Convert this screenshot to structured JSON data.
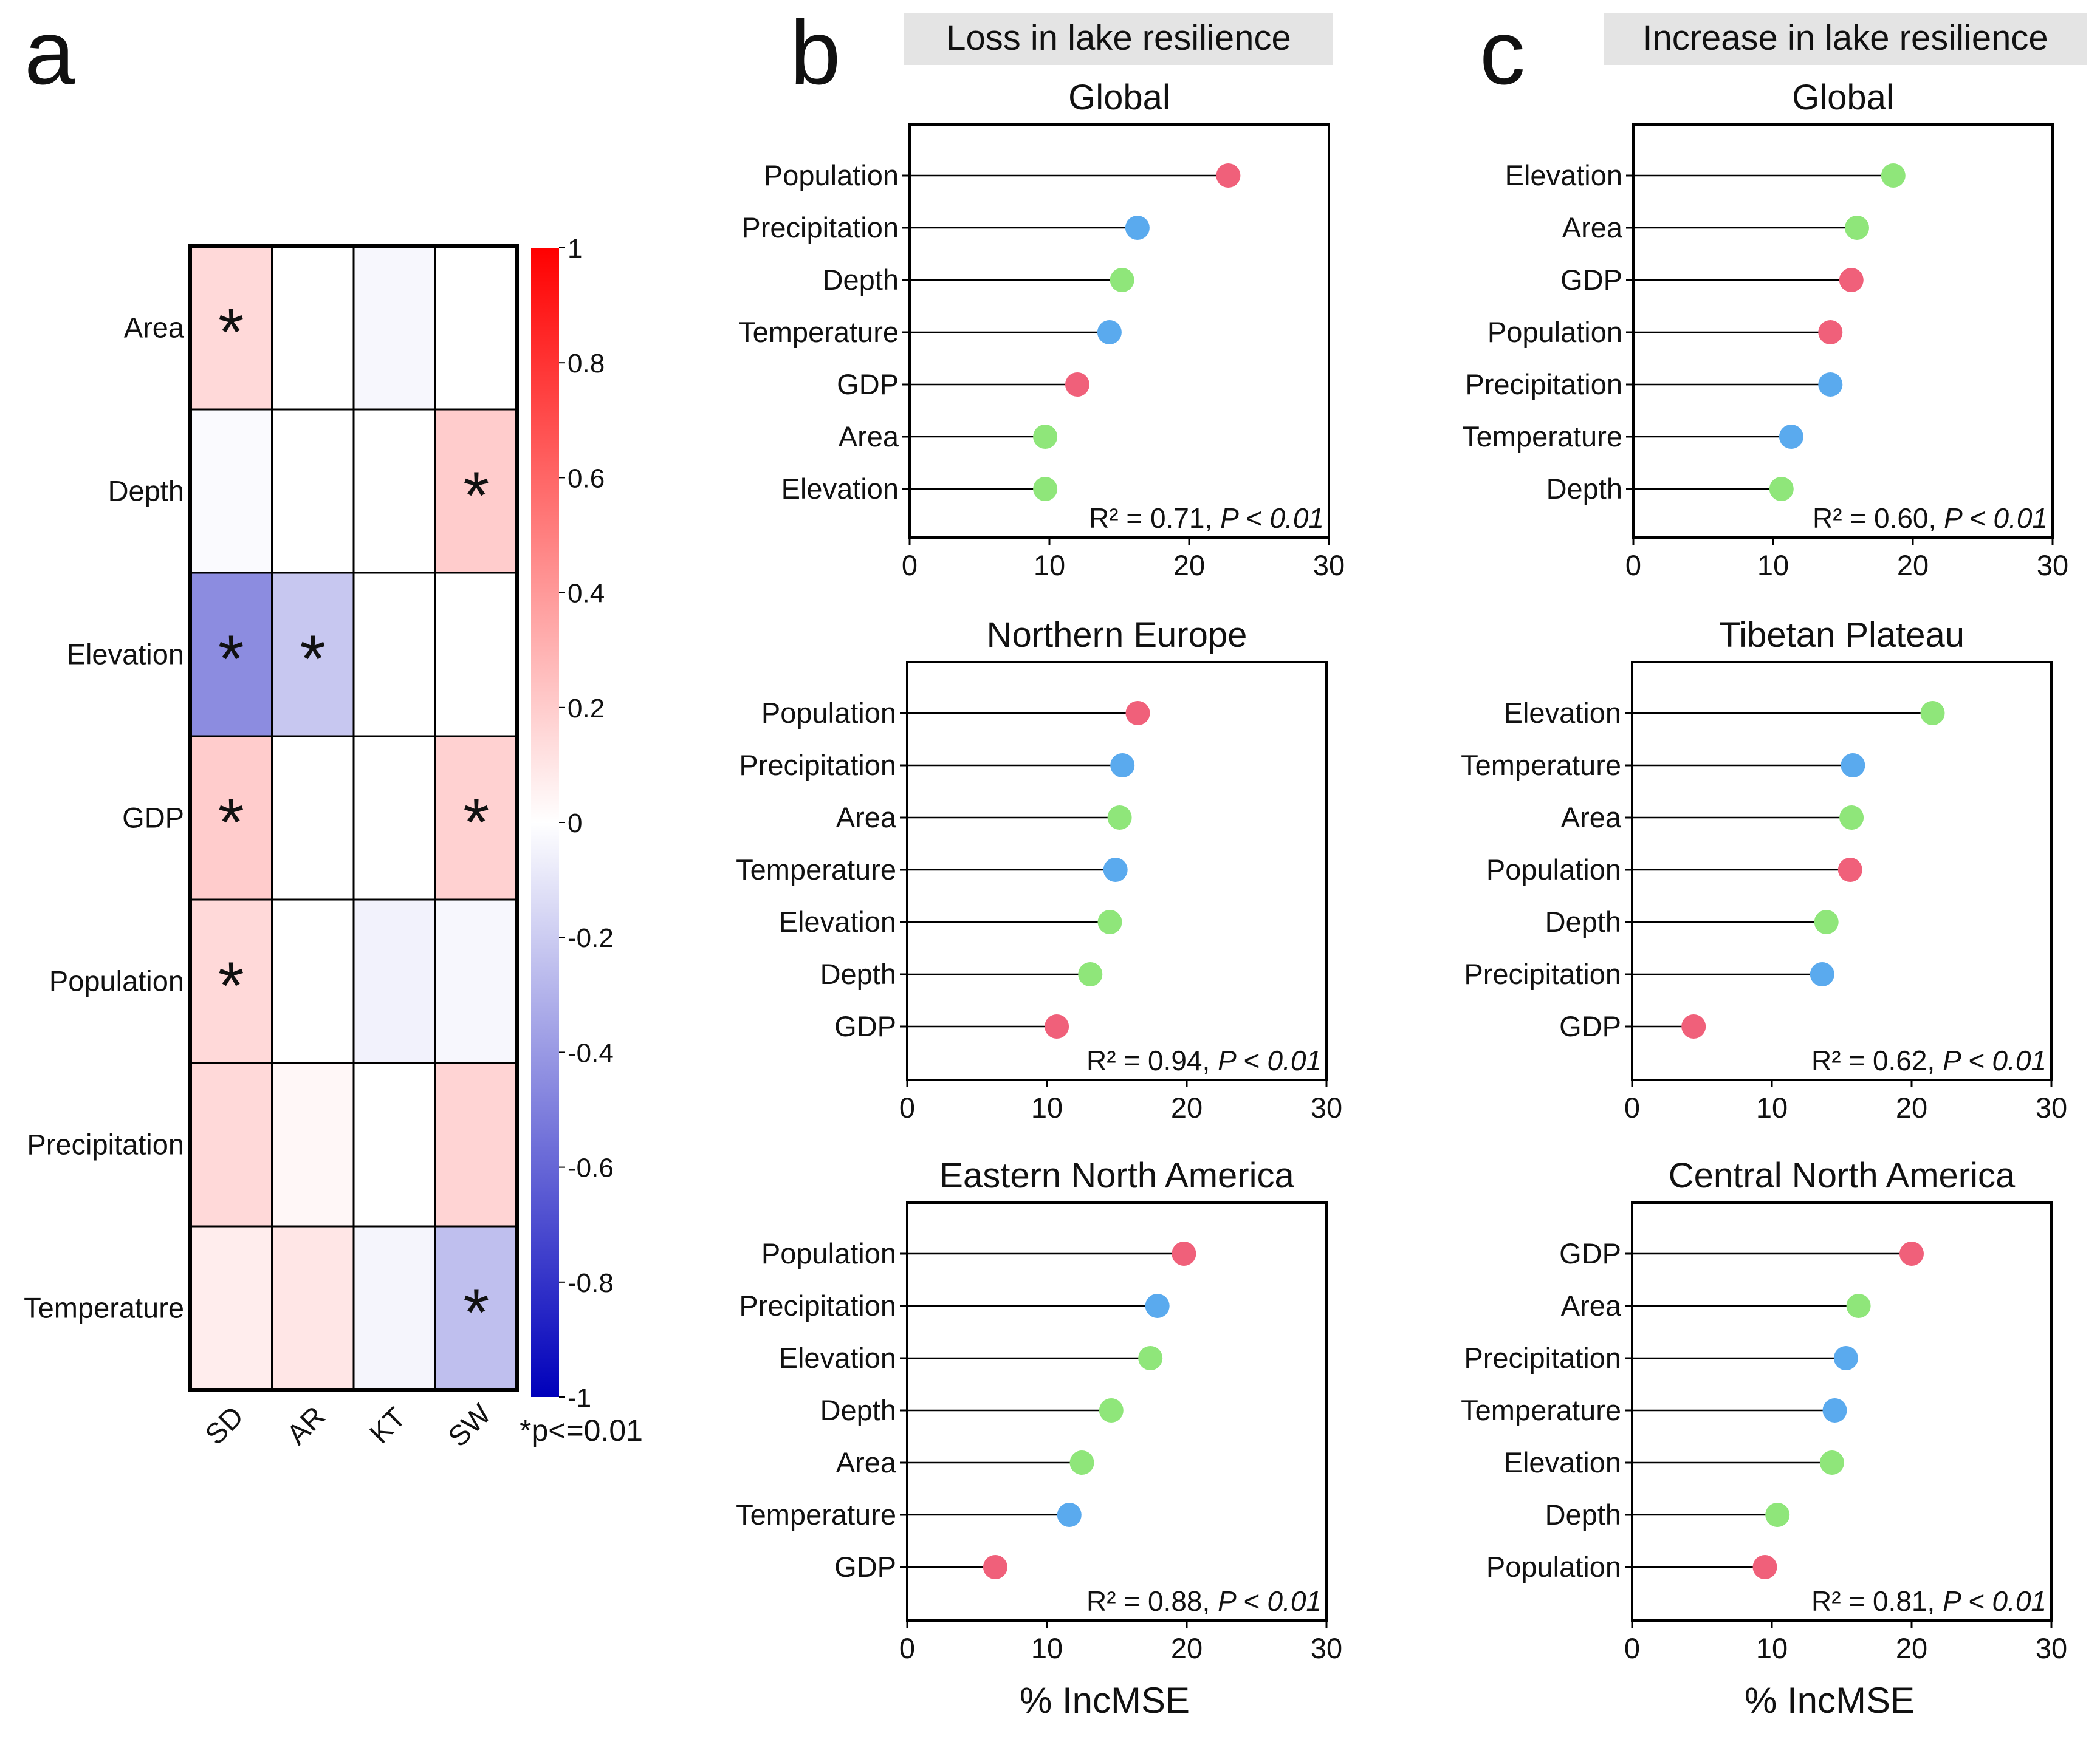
{
  "panel_letters": {
    "a": "a",
    "b": "b",
    "c": "c"
  },
  "headers": {
    "b": "Loss in lake resilience",
    "c": "Increase in lake resilience"
  },
  "colors": {
    "human": "#f0607a",
    "climate": "#5aaaee",
    "lake": "#8fe67a",
    "header_bg": "#e4e4e4"
  },
  "chart_data": [
    {
      "type": "heatmap",
      "panel": "a",
      "rows": [
        "Area",
        "Depth",
        "Elevation",
        "GDP",
        "Population",
        "Precipitation",
        "Temperature"
      ],
      "columns": [
        "SD",
        "AR",
        "KT",
        "SW"
      ],
      "values": [
        [
          0.15,
          0.0,
          -0.03,
          0.0
        ],
        [
          -0.02,
          0.0,
          0.0,
          0.2
        ],
        [
          -0.45,
          -0.22,
          0.0,
          0.0
        ],
        [
          0.2,
          0.0,
          0.0,
          0.18
        ],
        [
          0.15,
          0.0,
          -0.05,
          -0.03
        ],
        [
          0.15,
          0.03,
          0.0,
          0.17
        ],
        [
          0.07,
          0.1,
          -0.04,
          -0.25
        ]
      ],
      "significant": [
        [
          true,
          false,
          false,
          false
        ],
        [
          false,
          false,
          false,
          true
        ],
        [
          true,
          true,
          false,
          false
        ],
        [
          true,
          false,
          false,
          true
        ],
        [
          true,
          false,
          false,
          false
        ],
        [
          false,
          false,
          false,
          false
        ],
        [
          false,
          false,
          false,
          true
        ]
      ],
      "colorbar": {
        "range": [
          -1,
          1
        ],
        "ticks": [
          "1",
          "0.8",
          "0.6",
          "0.4",
          "0.2",
          "0",
          "-0.2",
          "-0.4",
          "-0.6",
          "-0.8",
          "-1"
        ]
      },
      "legend_note": "*p<=0.01"
    },
    {
      "type": "lollipop",
      "panel": "b",
      "title": "Global",
      "xlim": [
        0,
        30
      ],
      "xticks": [
        "0",
        "10",
        "20",
        "30"
      ],
      "xlabel": "",
      "annotation": {
        "r2": "R² = 0.71,",
        "p": "P < 0.01"
      },
      "bars": [
        {
          "label": "Population",
          "value": 22.8,
          "group": "human"
        },
        {
          "label": "Precipitation",
          "value": 16.3,
          "group": "climate"
        },
        {
          "label": "Depth",
          "value": 15.2,
          "group": "lake"
        },
        {
          "label": "Temperature",
          "value": 14.3,
          "group": "climate"
        },
        {
          "label": "GDP",
          "value": 12.0,
          "group": "human"
        },
        {
          "label": "Area",
          "value": 9.7,
          "group": "lake"
        },
        {
          "label": "Elevation",
          "value": 9.7,
          "group": "lake"
        }
      ]
    },
    {
      "type": "lollipop",
      "panel": "b",
      "title": "Northern Europe",
      "xlim": [
        0,
        30
      ],
      "xticks": [
        "0",
        "10",
        "20",
        "30"
      ],
      "xlabel": "",
      "annotation": {
        "r2": "R² = 0.94,",
        "p": "P < 0.01"
      },
      "bars": [
        {
          "label": "Population",
          "value": 16.5,
          "group": "human"
        },
        {
          "label": "Precipitation",
          "value": 15.4,
          "group": "climate"
        },
        {
          "label": "Area",
          "value": 15.2,
          "group": "lake"
        },
        {
          "label": "Temperature",
          "value": 14.9,
          "group": "climate"
        },
        {
          "label": "Elevation",
          "value": 14.5,
          "group": "lake"
        },
        {
          "label": "Depth",
          "value": 13.1,
          "group": "lake"
        },
        {
          "label": "GDP",
          "value": 10.7,
          "group": "human"
        }
      ]
    },
    {
      "type": "lollipop",
      "panel": "b",
      "title": "Eastern North America",
      "xlim": [
        0,
        30
      ],
      "xticks": [
        "0",
        "10",
        "20",
        "30"
      ],
      "xlabel": "% IncMSE",
      "annotation": {
        "r2": "R² = 0.88,",
        "p": "P < 0.01"
      },
      "bars": [
        {
          "label": "Population",
          "value": 19.8,
          "group": "human"
        },
        {
          "label": "Precipitation",
          "value": 17.9,
          "group": "climate"
        },
        {
          "label": "Elevation",
          "value": 17.4,
          "group": "lake"
        },
        {
          "label": "Depth",
          "value": 14.6,
          "group": "lake"
        },
        {
          "label": "Area",
          "value": 12.5,
          "group": "lake"
        },
        {
          "label": "Temperature",
          "value": 11.6,
          "group": "climate"
        },
        {
          "label": "GDP",
          "value": 6.3,
          "group": "human"
        }
      ]
    },
    {
      "type": "lollipop",
      "panel": "c",
      "title": "Global",
      "xlim": [
        0,
        30
      ],
      "xticks": [
        "0",
        "10",
        "20",
        "30"
      ],
      "xlabel": "",
      "annotation": {
        "r2": "R² = 0.60,",
        "p": "P < 0.01"
      },
      "bars": [
        {
          "label": "Elevation",
          "value": 18.6,
          "group": "lake"
        },
        {
          "label": "Area",
          "value": 16.0,
          "group": "lake"
        },
        {
          "label": "GDP",
          "value": 15.6,
          "group": "human"
        },
        {
          "label": "Population",
          "value": 14.1,
          "group": "human"
        },
        {
          "label": "Precipitation",
          "value": 14.1,
          "group": "climate"
        },
        {
          "label": "Temperature",
          "value": 11.3,
          "group": "climate"
        },
        {
          "label": "Depth",
          "value": 10.6,
          "group": "lake"
        }
      ]
    },
    {
      "type": "lollipop",
      "panel": "c",
      "title": "Tibetan Plateau",
      "xlim": [
        0,
        30
      ],
      "xticks": [
        "0",
        "10",
        "20",
        "30"
      ],
      "xlabel": "",
      "annotation": {
        "r2": "R² = 0.62,",
        "p": "P < 0.01"
      },
      "bars": [
        {
          "label": "Elevation",
          "value": 21.5,
          "group": "lake"
        },
        {
          "label": "Temperature",
          "value": 15.8,
          "group": "climate"
        },
        {
          "label": "Area",
          "value": 15.7,
          "group": "lake"
        },
        {
          "label": "Population",
          "value": 15.6,
          "group": "human"
        },
        {
          "label": "Depth",
          "value": 13.9,
          "group": "lake"
        },
        {
          "label": "Precipitation",
          "value": 13.6,
          "group": "climate"
        },
        {
          "label": "GDP",
          "value": 4.4,
          "group": "human"
        }
      ]
    },
    {
      "type": "lollipop",
      "panel": "c",
      "title": "Central North America",
      "xlim": [
        0,
        30
      ],
      "xticks": [
        "0",
        "10",
        "20",
        "30"
      ],
      "xlabel": "% IncMSE",
      "annotation": {
        "r2": "R² = 0.81,",
        "p": "P < 0.01"
      },
      "bars": [
        {
          "label": "GDP",
          "value": 20.0,
          "group": "human"
        },
        {
          "label": "Area",
          "value": 16.2,
          "group": "lake"
        },
        {
          "label": "Precipitation",
          "value": 15.3,
          "group": "climate"
        },
        {
          "label": "Temperature",
          "value": 14.5,
          "group": "climate"
        },
        {
          "label": "Elevation",
          "value": 14.3,
          "group": "lake"
        },
        {
          "label": "Depth",
          "value": 10.4,
          "group": "lake"
        },
        {
          "label": "Population",
          "value": 9.5,
          "group": "human"
        }
      ]
    }
  ]
}
